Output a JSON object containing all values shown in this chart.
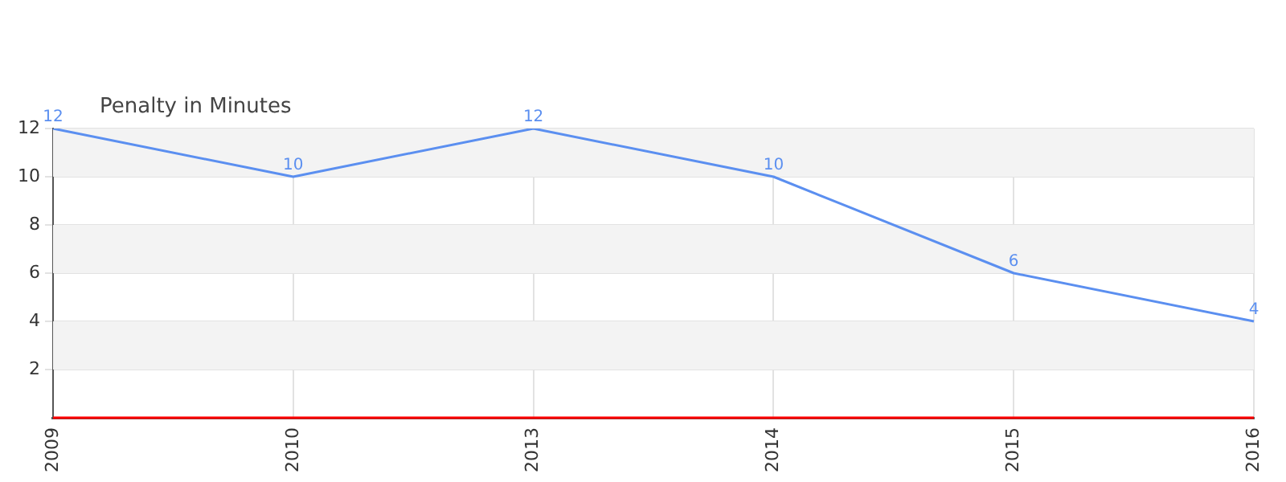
{
  "chart_data": {
    "type": "line",
    "title": "Penalty in Minutes",
    "categories": [
      "2009",
      "2010",
      "2013",
      "2014",
      "2015",
      "2016"
    ],
    "series": [
      {
        "color": "#5b8ff0",
        "values": [
          12,
          10,
          12,
          10,
          6,
          4
        ]
      }
    ],
    "ylim": [
      0,
      12
    ],
    "yticks": [
      2,
      4,
      6,
      8,
      10,
      12
    ],
    "grid": true,
    "legend": false,
    "data_labels": true,
    "marker": "none",
    "ref_lines": [
      {
        "axis": "y",
        "value": 0,
        "color": "#ff0000"
      }
    ]
  }
}
